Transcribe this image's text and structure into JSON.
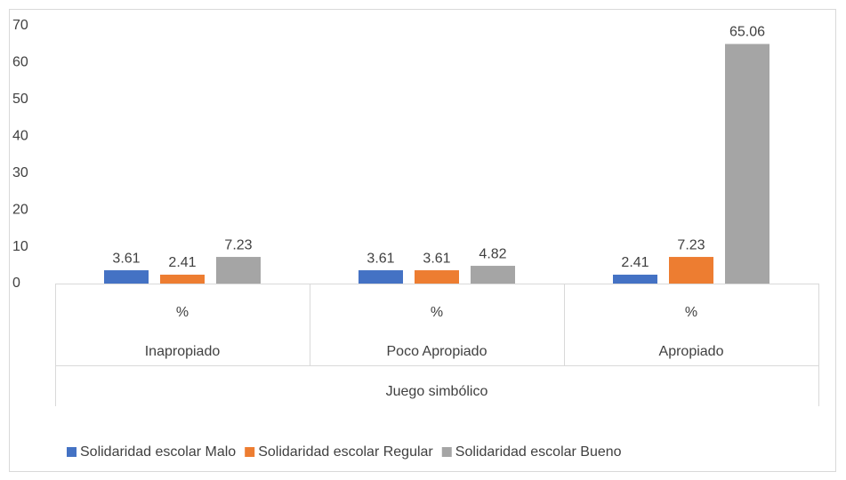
{
  "chart_data": {
    "type": "bar",
    "categories": [
      "%",
      "%",
      "%"
    ],
    "groups": [
      "Inapropiado",
      "Poco Apropiado",
      "Apropiado"
    ],
    "group_label": "Juego simbólico",
    "series": [
      {
        "name": "Solidaridad escolar Malo",
        "color": "#4472c4",
        "values": [
          3.61,
          3.61,
          2.41
        ]
      },
      {
        "name": "Solidaridad escolar Regular",
        "color": "#ed7d31",
        "values": [
          2.41,
          3.61,
          7.23
        ]
      },
      {
        "name": "Solidaridad escolar Bueno",
        "color": "#a5a5a5",
        "values": [
          7.23,
          4.82,
          65.06
        ]
      }
    ],
    "ylim": [
      0,
      70
    ],
    "yticks": [
      0,
      10,
      20,
      30,
      40,
      50,
      60,
      70
    ],
    "grid": false
  }
}
